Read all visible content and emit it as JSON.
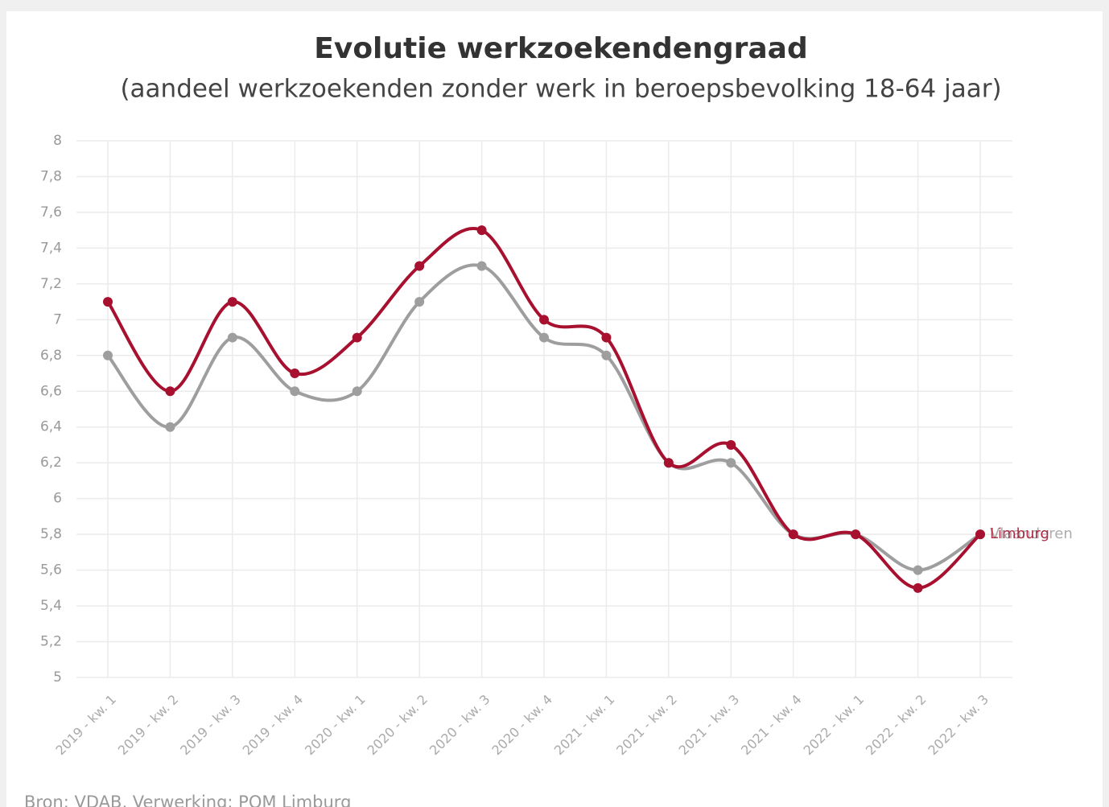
{
  "chart_data": {
    "type": "line",
    "title": "Evolutie werkzoekendengraad",
    "subtitle": "(aandeel werkzoekenden zonder werk in beroepsbevolking 18-64 jaar)",
    "source": "Bron: VDAB, Verwerking: POM Limburg",
    "categories": [
      "2019 - kw. 1",
      "2019 - kw. 2",
      "2019 - kw. 3",
      "2019 - kw. 4",
      "2020 - kw. 1",
      "2020 - kw. 2",
      "2020 - kw. 3",
      "2020 - kw. 4",
      "2021 - kw. 1",
      "2021 - kw. 2",
      "2021 - kw. 3",
      "2021 - kw. 4",
      "2022 - kw. 1",
      "2022 - kw. 2",
      "2022 - kw. 3"
    ],
    "series": [
      {
        "name": "Vlaanderen",
        "color": "#9e9e9e",
        "values": [
          6.8,
          6.4,
          6.9,
          6.6,
          6.6,
          7.1,
          7.3,
          6.9,
          6.8,
          6.2,
          6.2,
          5.8,
          5.8,
          5.6,
          5.8
        ]
      },
      {
        "name": "Limburg",
        "color": "#a8102f",
        "values": [
          7.1,
          6.6,
          7.1,
          6.7,
          6.9,
          7.3,
          7.5,
          7.0,
          6.9,
          6.2,
          6.3,
          5.8,
          5.8,
          5.5,
          5.8
        ]
      }
    ],
    "ylim": [
      5,
      8
    ],
    "yticks": [
      5,
      {
        "value": 5.2,
        "label": "5,2"
      },
      {
        "value": 5.4,
        "label": "5,4"
      },
      {
        "value": 5.6,
        "label": "5,6"
      },
      {
        "value": 5.8,
        "label": "5,8"
      },
      6,
      {
        "value": 6.2,
        "label": "6,2"
      },
      {
        "value": 6.4,
        "label": "6,4"
      },
      {
        "value": 6.6,
        "label": "6,6"
      },
      {
        "value": 6.8,
        "label": "6,8"
      },
      7,
      {
        "value": 7.2,
        "label": "7,2"
      },
      {
        "value": 7.4,
        "label": "7,4"
      },
      {
        "value": 7.6,
        "label": "7,6"
      },
      {
        "value": 7.8,
        "label": "7,8"
      },
      8
    ],
    "grid": true
  }
}
